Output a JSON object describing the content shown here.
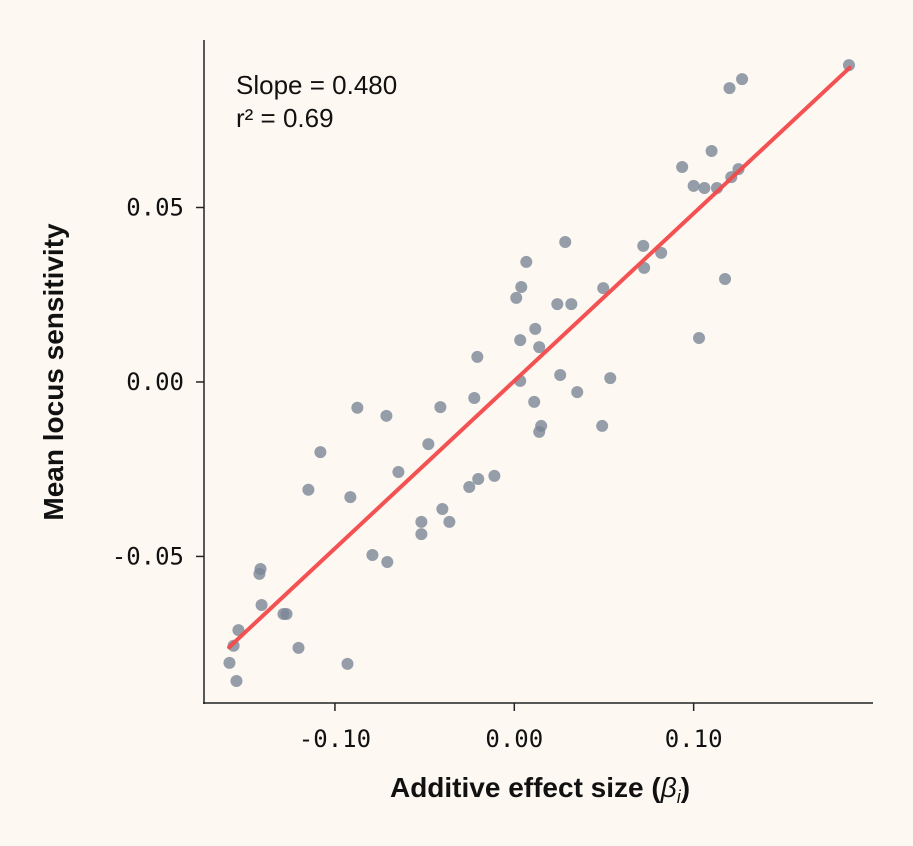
{
  "chart_data": {
    "type": "scatter",
    "title": "",
    "xlabel": "Additive effect size (",
    "xlabel_symbol": "β",
    "xlabel_sub": "i",
    "xlabel_close": ")",
    "ylabel": "Mean locus sensitivity",
    "xlim": [
      -0.173,
      0.2
    ],
    "ylim": [
      -0.092,
      0.098
    ],
    "xticks": [
      -0.1,
      0.0,
      0.1
    ],
    "xtick_labels": [
      "-0.10",
      "0.00",
      "0.10"
    ],
    "yticks": [
      -0.05,
      0.0,
      0.05
    ],
    "ytick_labels": [
      "-0.05",
      "0.00",
      "0.05"
    ],
    "grid": false,
    "annotations": [
      "Slope = 0.480",
      "r² = 0.69"
    ],
    "fit_line": {
      "slope": 0.48,
      "intercept": 0.0003,
      "x_range": [
        -0.159,
        0.187
      ],
      "color": "#f44a4a"
    },
    "point_color": "#7a8696",
    "background": "#fdf8f2",
    "points": [
      [
        0.1866,
        0.0908
      ],
      [
        0.127,
        0.0868
      ],
      [
        0.12,
        0.0842
      ],
      [
        0.11,
        0.0662
      ],
      [
        0.0936,
        0.0616
      ],
      [
        0.125,
        0.061
      ],
      [
        0.121,
        0.0587
      ],
      [
        0.1,
        0.0562
      ],
      [
        0.106,
        0.0556
      ],
      [
        0.113,
        0.0556
      ],
      [
        0.0719,
        0.039
      ],
      [
        0.0819,
        0.037
      ],
      [
        0.0724,
        0.0327
      ],
      [
        0.1175,
        0.0295
      ],
      [
        0.103,
        0.0126
      ],
      [
        0.0284,
        0.0401
      ],
      [
        0.0067,
        0.0344
      ],
      [
        0.0039,
        0.0272
      ],
      [
        0.0011,
        0.0241
      ],
      [
        0.024,
        0.0223
      ],
      [
        0.0318,
        0.0223
      ],
      [
        0.0496,
        0.0269
      ],
      [
        0.0117,
        0.0152
      ],
      [
        0.0033,
        0.012
      ],
      [
        0.0139,
        0.01
      ],
      [
        -0.0206,
        0.0072
      ],
      [
        0.0256,
        0.002
      ],
      [
        0.0033,
        0.0003
      ],
      [
        0.0535,
        0.0011
      ],
      [
        0.0351,
        -0.0029
      ],
      [
        -0.0223,
        -0.0046
      ],
      [
        0.0111,
        -0.0057
      ],
      [
        -0.0412,
        -0.0072
      ],
      [
        0.015,
        -0.0126
      ],
      [
        0.0139,
        -0.0143
      ],
      [
        0.049,
        -0.0126
      ],
      [
        -0.0875,
        -0.0074
      ],
      [
        -0.0713,
        -0.0097
      ],
      [
        -0.0479,
        -0.0178
      ],
      [
        -0.1081,
        -0.0201
      ],
      [
        -0.0646,
        -0.0258
      ],
      [
        -0.0111,
        -0.0269
      ],
      [
        -0.0201,
        -0.0278
      ],
      [
        -0.0251,
        -0.0301
      ],
      [
        -0.1148,
        -0.0309
      ],
      [
        -0.0914,
        -0.033
      ],
      [
        -0.0401,
        -0.0364
      ],
      [
        -0.0518,
        -0.0401
      ],
      [
        -0.0362,
        -0.0401
      ],
      [
        -0.0518,
        -0.0436
      ],
      [
        -0.0791,
        -0.0496
      ],
      [
        -0.0708,
        -0.0516
      ],
      [
        -0.1415,
        -0.0536
      ],
      [
        -0.1421,
        -0.055
      ],
      [
        -0.1409,
        -0.0639
      ],
      [
        -0.1287,
        -0.0665
      ],
      [
        -0.127,
        -0.0665
      ],
      [
        -0.1538,
        -0.0711
      ],
      [
        -0.1565,
        -0.0756
      ],
      [
        -0.1203,
        -0.0762
      ],
      [
        -0.1588,
        -0.0805
      ],
      [
        -0.093,
        -0.0808
      ],
      [
        -0.1549,
        -0.0857
      ]
    ]
  }
}
